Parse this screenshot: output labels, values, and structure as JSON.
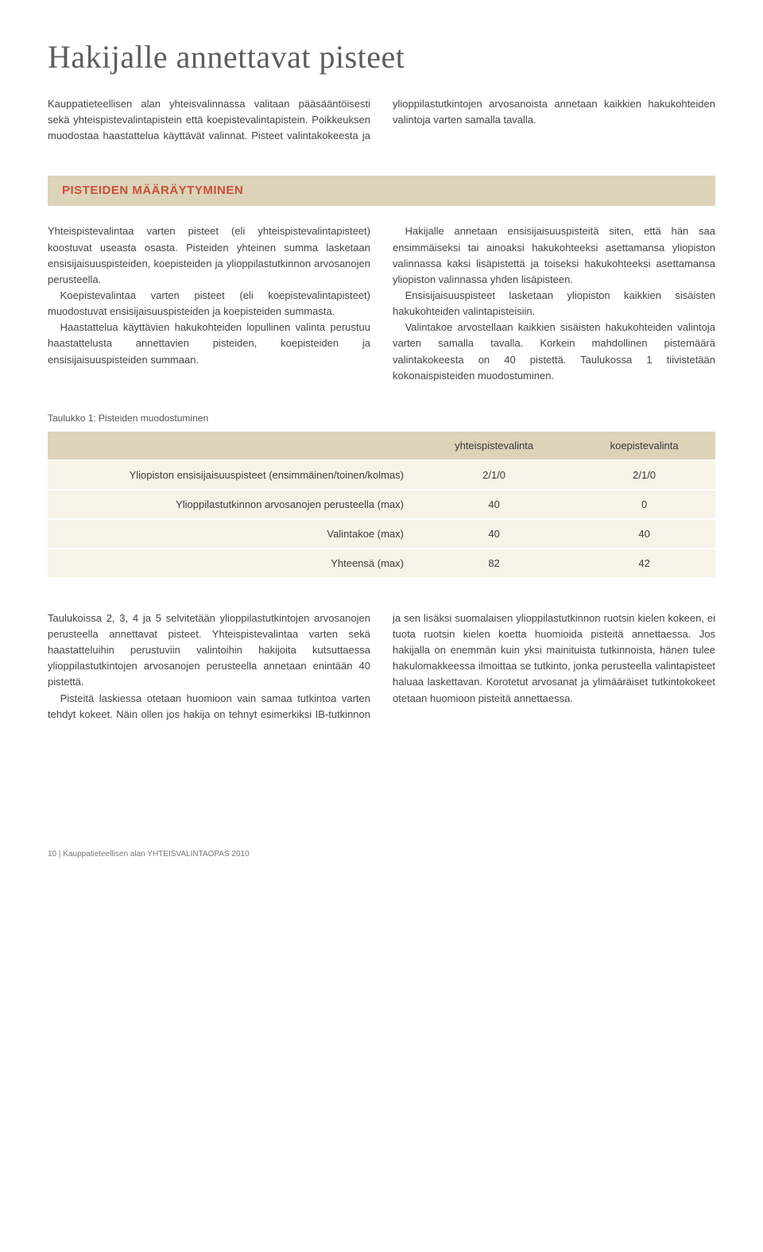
{
  "heading": "Hakijalle annettavat pisteet",
  "intro_paragraphs": [
    "Kauppatieteellisen alan yhteisvalinnassa valitaan pääsääntöisesti sekä yhteispistevalintapistein että koepistevalintapistein. Poikkeuksen muodostaa haastattelua käyttävät valinnat. Pisteet valintakokeesta ja ylioppilastutkintojen arvosanoista annetaan kaikkien hakukohteiden valintoja varten samalla tavalla."
  ],
  "section_heading": "PISTEIDEN MÄÄRÄYTYMINEN",
  "section_paragraphs": [
    "Yhteispistevalintaa varten pisteet (eli yhteispistevalintapisteet) koostuvat useasta osasta. Pisteiden yhteinen summa lasketaan ensisijaisuuspisteiden, koepisteiden ja ylioppilastutkinnon arvosanojen perusteella.",
    "Koepistevalintaa varten pisteet (eli koepistevalintapisteet) muodostuvat ensisijaisuuspisteiden ja koepisteiden summasta.",
    "Haastattelua käyttävien hakukohteiden lopullinen valinta perustuu haastattelusta annettavien pisteiden, koepisteiden ja ensisijaisuuspisteiden summaan.",
    "Hakijalle annetaan ensisijaisuuspisteitä siten, että hän saa ensimmäiseksi tai ainoaksi hakukohteeksi asettamansa yliopiston valinnassa kaksi lisäpistettä ja toiseksi hakukohteeksi asettamansa yliopiston valinnassa yhden lisäpisteen.",
    "Ensisijaisuuspisteet lasketaan yliopiston kaikkien sisäisten hakukohteiden valintapisteisiin.",
    "Valintakoe arvostellaan kaikkien sisäisten hakukohteiden valintoja varten samalla tavalla. Korkein mahdollinen pistemäärä valintakokeesta on 40 pistettä. Taulukossa 1 tiivistetään kokonaispisteiden muodostuminen."
  ],
  "table": {
    "caption": "Taulukko 1: Pisteiden muodostuminen",
    "columns": [
      "",
      "yhteispistevalinta",
      "koepistevalinta"
    ],
    "rows": [
      [
        "Yliopiston ensisijaisuuspisteet (ensimmäinen/toinen/kolmas)",
        "2/1/0",
        "2/1/0"
      ],
      [
        "Ylioppilastutkinnon arvosanojen perusteella (max)",
        "40",
        "0"
      ],
      [
        "Valintakoe (max)",
        "40",
        "40"
      ],
      [
        "Yhteensä (max)",
        "82",
        "42"
      ]
    ],
    "header_bg": "#dcd3b9",
    "row_bg": "#f7f3e8"
  },
  "after_paragraphs": [
    "Taulukoissa 2, 3, 4 ja 5 selvitetään ylioppilastutkintojen arvosanojen perusteella annettavat pisteet. Yhteispistevalintaa varten sekä haastatteluihin perustuviin valintoihin hakijoita kutsuttaessa ylioppilastutkintojen arvosanojen perusteella annetaan enintään 40 pistettä.",
    "Pisteitä laskiessa otetaan huomioon vain samaa tutkintoa varten tehdyt kokeet. Näin ollen jos hakija on tehnyt esimerkiksi IB-tutkinnon ja sen lisäksi suomalaisen ylioppilastutkinnon ruotsin kielen kokeen, ei tuota ruotsin kielen koetta huomioida pisteitä annettaessa. Jos hakijalla on enemmän kuin yksi mainituista tutkinnoista, hänen tulee hakulomakkeessa ilmoittaa se tutkinto, jonka perusteella valintapisteet haluaa laskettavan. Korotetut arvosanat ja ylimääräiset tutkintokokeet otetaan huomioon pisteitä annettaessa."
  ],
  "footer": "10 | Kauppatieteellisen alan YHTEISVALINTAOPAS 2010",
  "colors": {
    "accent": "#c94f3a",
    "beige_dark": "#dcd3b9",
    "beige_light": "#f7f3e8",
    "text": "#3a3a3a",
    "heading": "#5d5d5d"
  }
}
